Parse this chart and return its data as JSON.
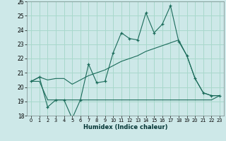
{
  "xlabel": "Humidex (Indice chaleur)",
  "bg_color": "#cde8e8",
  "grid_color": "#a8d8cc",
  "line_color": "#1a6b5a",
  "xlim": [
    -0.5,
    23.5
  ],
  "ylim": [
    18,
    26
  ],
  "yticks": [
    18,
    19,
    20,
    21,
    22,
    23,
    24,
    25,
    26
  ],
  "xticks": [
    0,
    1,
    2,
    3,
    4,
    5,
    6,
    7,
    8,
    9,
    10,
    11,
    12,
    13,
    14,
    15,
    16,
    17,
    18,
    19,
    20,
    21,
    22,
    23
  ],
  "main_y": [
    20.4,
    20.7,
    18.6,
    19.1,
    19.1,
    17.8,
    19.1,
    21.6,
    20.3,
    20.4,
    22.4,
    23.8,
    23.4,
    23.3,
    25.2,
    23.8,
    24.4,
    25.7,
    23.2,
    22.2,
    20.6,
    19.6,
    19.4,
    19.4
  ],
  "line_flat_y": [
    20.4,
    20.4,
    19.1,
    19.1,
    19.1,
    19.1,
    19.1,
    19.1,
    19.1,
    19.1,
    19.1,
    19.1,
    19.1,
    19.1,
    19.1,
    19.1,
    19.1,
    19.1,
    19.1,
    19.1,
    19.1,
    19.1,
    19.1,
    19.4
  ],
  "line_diag_y": [
    20.4,
    20.7,
    20.5,
    20.6,
    20.6,
    20.2,
    20.5,
    20.8,
    21.0,
    21.2,
    21.5,
    21.8,
    22.0,
    22.2,
    22.5,
    22.7,
    22.9,
    23.1,
    23.3,
    22.2,
    20.6,
    19.6,
    19.4,
    19.4
  ]
}
